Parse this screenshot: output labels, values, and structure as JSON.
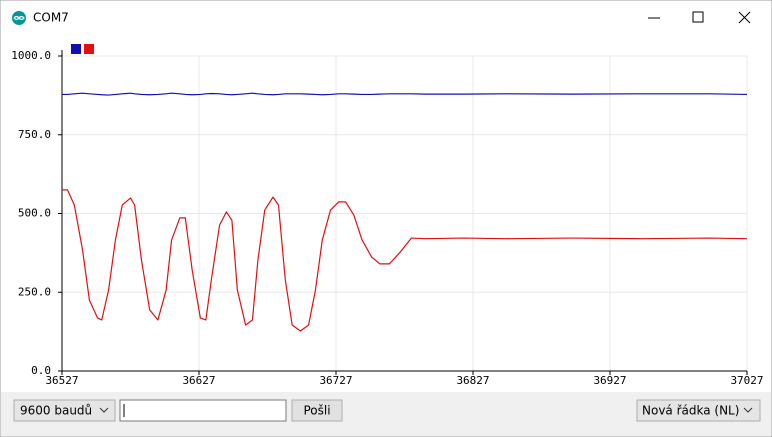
{
  "window": {
    "title": "COM7"
  },
  "controls": {
    "baud": "9600 baudů",
    "send": "Pošli",
    "line_ending": "Nová řádka (NL)"
  },
  "chart_data": {
    "type": "line",
    "x": [
      36527,
      36531,
      36536,
      36542,
      36547,
      36553,
      36556,
      36561,
      36566,
      36571,
      36577,
      36580,
      36585,
      36591,
      36597,
      36603,
      36607,
      36613,
      36617,
      36622,
      36628,
      36632,
      36636,
      36642,
      36647,
      36651,
      36655,
      36661,
      36666,
      36670,
      36675,
      36681,
      36685,
      36690,
      36695,
      36701,
      36707,
      36712,
      36717,
      36723,
      36729,
      36734,
      36740,
      36746,
      36753,
      36759,
      36766,
      36774,
      36782,
      36792,
      36820,
      36850,
      36900,
      36950,
      37000,
      37027
    ],
    "series": [
      {
        "color": "#1010b0",
        "values": [
          878,
          878,
          880,
          882,
          880,
          878,
          877,
          876,
          878,
          880,
          882,
          880,
          878,
          877,
          878,
          880,
          882,
          880,
          878,
          877,
          878,
          880,
          881,
          880,
          878,
          877,
          878,
          880,
          882,
          880,
          878,
          877,
          878,
          880,
          880,
          880,
          879,
          878,
          877,
          878,
          880,
          880,
          879,
          878,
          878,
          879,
          880,
          880,
          880,
          879,
          879,
          880,
          879,
          880,
          880,
          878
        ]
      },
      {
        "color": "#e01010",
        "values": [
          575,
          575,
          527,
          384,
          225,
          168,
          162,
          257,
          416,
          527,
          549,
          527,
          352,
          194,
          162,
          257,
          416,
          486,
          486,
          321,
          168,
          162,
          289,
          463,
          505,
          479,
          257,
          146,
          162,
          352,
          511,
          552,
          527,
          289,
          146,
          127,
          146,
          257,
          416,
          511,
          537,
          537,
          495,
          416,
          362,
          340,
          340,
          378,
          422,
          420,
          422,
          420,
          422,
          420,
          422,
          420
        ]
      }
    ],
    "xlim": [
      36527,
      37027
    ],
    "ylim": [
      0,
      1000
    ],
    "xticks": [
      36527,
      36627,
      36727,
      36827,
      36927,
      37027
    ],
    "yticks": [
      {
        "value": 0,
        "label": "0.0"
      },
      {
        "value": 250,
        "label": "250.0"
      },
      {
        "value": 500,
        "label": "500.0"
      },
      {
        "value": 750,
        "label": "750.0"
      },
      {
        "value": 1000,
        "label": "1000.0"
      }
    ],
    "grid": true
  }
}
